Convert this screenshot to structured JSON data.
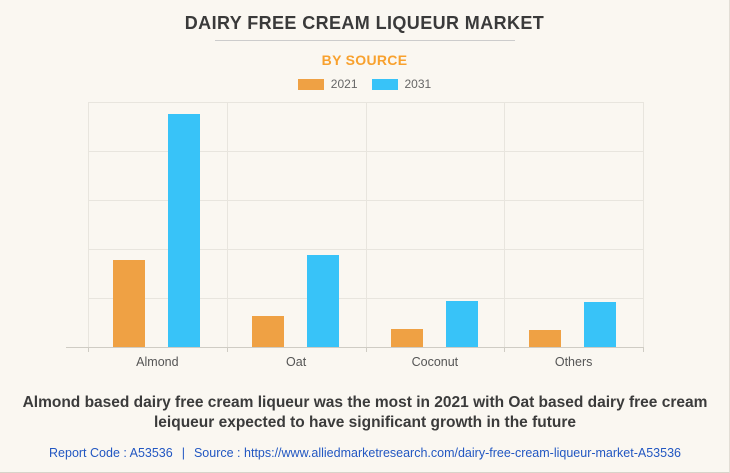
{
  "header": {
    "title": "DAIRY FREE CREAM LIQUEUR MARKET",
    "subtitle": "BY SOURCE"
  },
  "legend": {
    "items": [
      {
        "label": "2021",
        "color": "#efa144"
      },
      {
        "label": "2031",
        "color": "#38c3f8"
      }
    ]
  },
  "chart_data": {
    "type": "bar",
    "title": "DAIRY FREE CREAM LIQUEUR MARKET",
    "subtitle": "BY SOURCE",
    "categories": [
      "Almond",
      "Oat",
      "Coconut",
      "Others"
    ],
    "series": [
      {
        "name": "2021",
        "color": "#efa144",
        "values": [
          1.78,
          0.63,
          0.37,
          0.35
        ]
      },
      {
        "name": "2031",
        "color": "#38c3f8",
        "values": [
          4.76,
          1.88,
          0.94,
          0.92
        ]
      }
    ],
    "xlabel": "",
    "ylabel": "",
    "ylim": [
      0,
      5
    ],
    "grid": true,
    "legend_position": "top",
    "note": "y-axis has no tick labels; values estimated in gridline units (5 equal horizontal divisions)"
  },
  "footer": {
    "summary_lines": [
      "Almond based dairy free cream liqueur was the most in 2021 with Oat based dairy free cream",
      "leiqueur expected to have significant growth in the future"
    ],
    "report_code": "Report Code : A53536",
    "separator": "|",
    "source_prefix": "Source :",
    "source_url": "https://www.alliedmarketresearch.com/dairy-free-cream-liqueur-market-A53536"
  },
  "colors": {
    "background": "#faf7f1",
    "title_text": "#3a3a3a",
    "subtitle_text": "#f8a12e",
    "legend_text": "#666666",
    "grid_line": "#e8e5de",
    "axis_line": "#cfccc4",
    "axis_label": "#555555",
    "summary_text": "#3b3b3b",
    "link_blue": "#2257c2",
    "bar_2021": "#efa144",
    "bar_2031": "#38c3f8"
  }
}
